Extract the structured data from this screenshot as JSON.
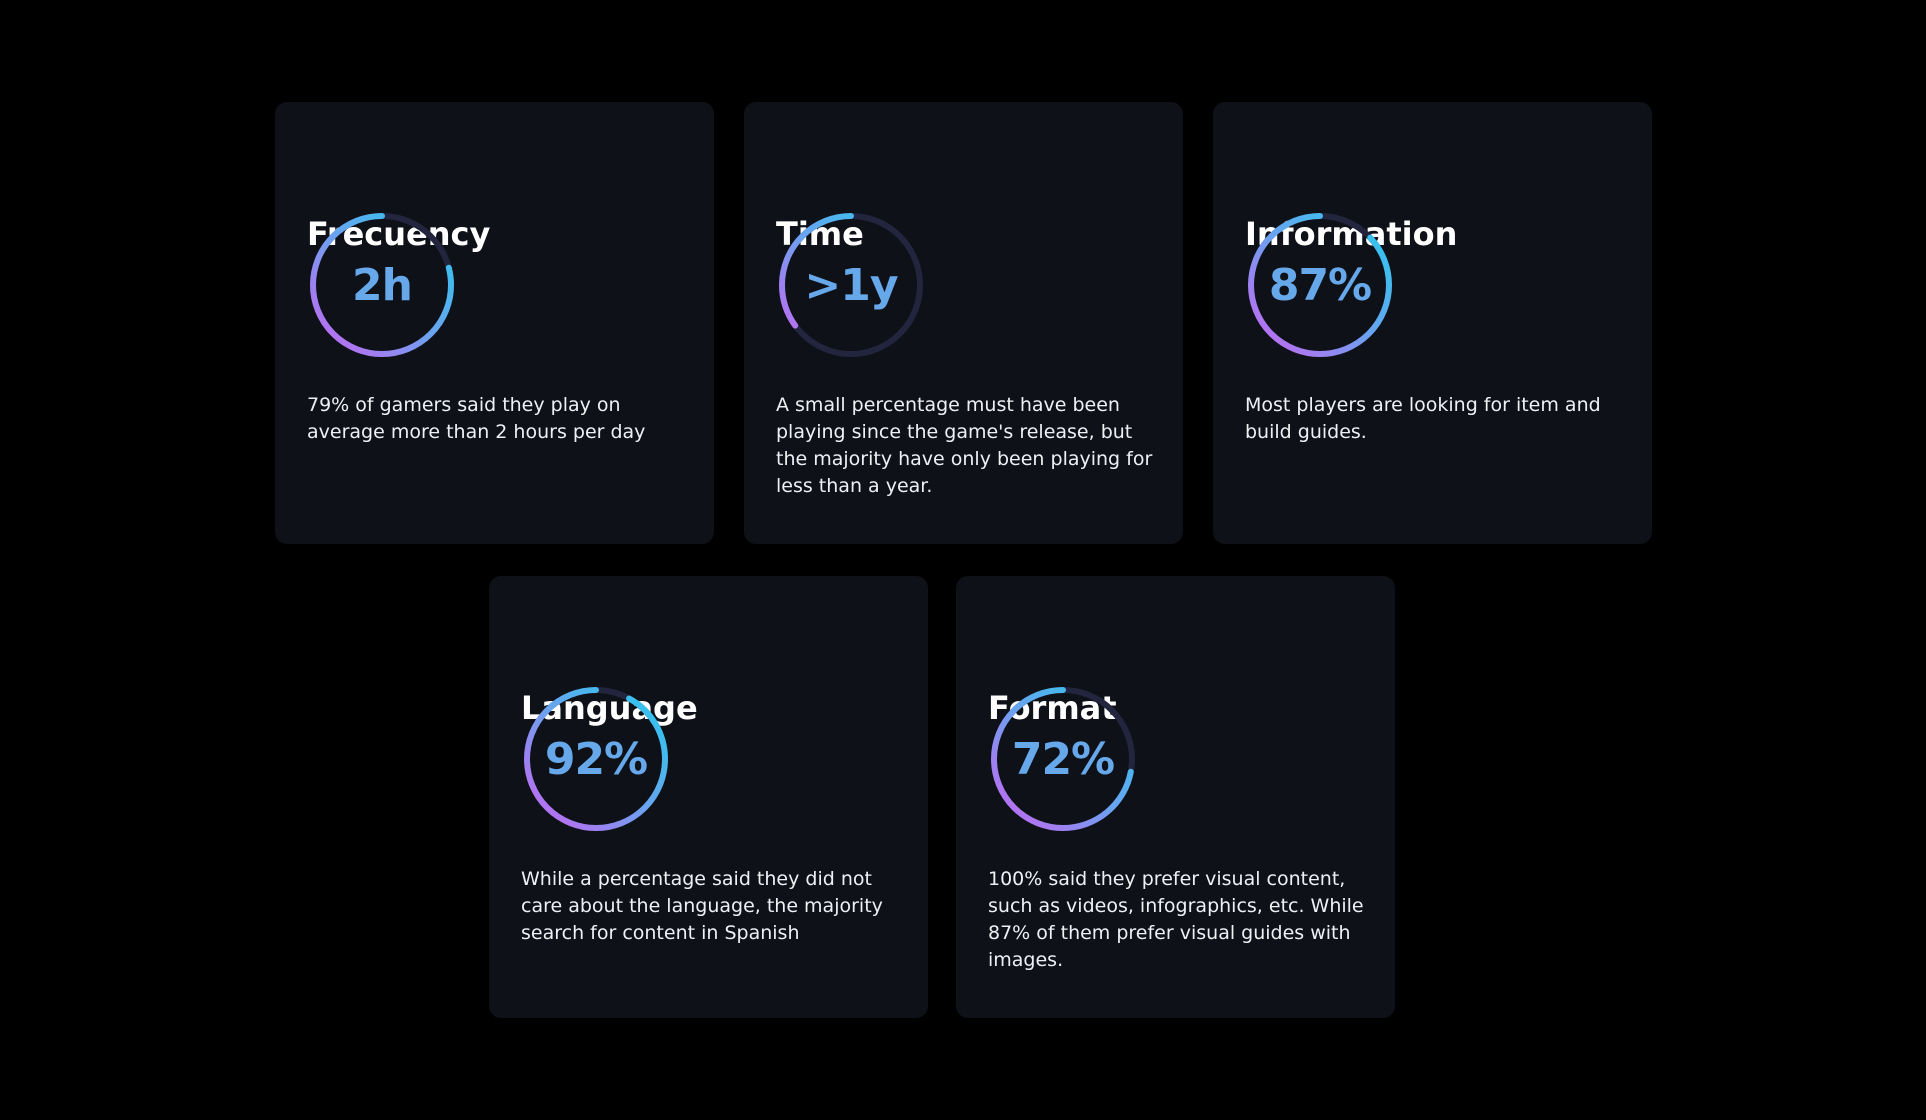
{
  "colors": {
    "page_background": "#000000",
    "card_background": "#0e1118",
    "ring_track": "#23253f",
    "ring_gradient_start": "#1fd0ec",
    "ring_gradient_mid": "#6aa3f0",
    "ring_gradient_end": "#d65cf2",
    "value_text": "#66a8ea",
    "title_text": "#ffffff",
    "body_text": "#eef0f4"
  },
  "cards": [
    {
      "title": "Frecuency",
      "value": "2h",
      "progress": 0.79,
      "description": "79% of gamers said they play on average more than 2 hours per day"
    },
    {
      "title": "Time",
      "value": ">1y",
      "progress": 0.35,
      "description": "A small percentage must have been playing since the game's release, but the majority have only been playing for less than a year."
    },
    {
      "title": "Information",
      "value": "87%",
      "progress": 0.87,
      "description": "Most players are looking for item and build guides."
    },
    {
      "title": "Language",
      "value": "92%",
      "progress": 0.92,
      "description": "While a percentage said they did not care about the language, the majority search for content in Spanish"
    },
    {
      "title": "Format",
      "value": "72%",
      "progress": 0.72,
      "description": "100% said they prefer visual content, such as videos, infographics, etc. While 87% of them prefer visual guides with images."
    }
  ]
}
